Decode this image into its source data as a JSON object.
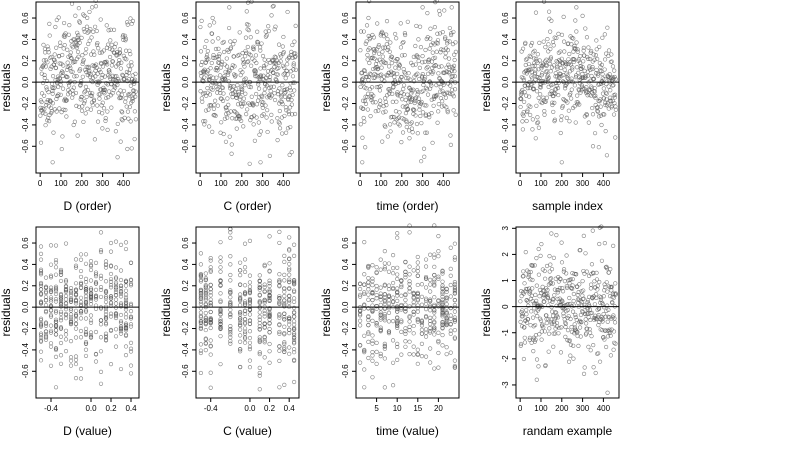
{
  "chart_data": [
    {
      "id": "p1",
      "type": "scatter",
      "xlabel": "D (order)",
      "ylabel": "residuals",
      "xlim": [
        -20,
        475
      ],
      "ylim": [
        -0.85,
        0.75
      ],
      "xticks": [
        0,
        100,
        200,
        300,
        400
      ],
      "xtick_labels": [
        "0",
        "100",
        "200",
        "300",
        "400"
      ],
      "yticks": [
        -0.6,
        -0.4,
        -0.2,
        0.0,
        0.2,
        0.4,
        0.6
      ],
      "ytick_labels": [
        "-0.6",
        "-0.4",
        "-0.2",
        "0.0",
        "0.2",
        "0.4",
        "0.6"
      ],
      "hline": 0,
      "x_kind": "index",
      "n_points": 460,
      "trend": "arch",
      "y_sd": 0.24,
      "seed": 11,
      "y_extremes": [
        [
          250,
          0.7
        ],
        [
          60,
          -0.75
        ],
        [
          440,
          -0.62
        ],
        [
          180,
          -0.5
        ]
      ]
    },
    {
      "id": "p2",
      "type": "scatter",
      "xlabel": "C (order)",
      "ylabel": "residuals",
      "xlim": [
        -20,
        475
      ],
      "ylim": [
        -0.85,
        0.75
      ],
      "xticks": [
        0,
        100,
        200,
        300,
        400
      ],
      "xtick_labels": [
        "0",
        "100",
        "200",
        "300",
        "400"
      ],
      "yticks": [
        -0.6,
        -0.4,
        -0.2,
        0.0,
        0.2,
        0.4,
        0.6
      ],
      "ytick_labels": [
        "-0.6",
        "-0.4",
        "-0.2",
        "0.0",
        "0.2",
        "0.4",
        "0.6"
      ],
      "hline": 0,
      "x_kind": "index",
      "n_points": 460,
      "trend": "flat",
      "y_sd": 0.26,
      "seed": 23,
      "y_extremes": [
        [
          140,
          0.7
        ],
        [
          290,
          -0.75
        ],
        [
          430,
          -0.68
        ],
        [
          60,
          0.6
        ]
      ]
    },
    {
      "id": "p3",
      "type": "scatter",
      "xlabel": "time (order)",
      "ylabel": "residuals",
      "xlim": [
        -20,
        475
      ],
      "ylim": [
        -0.85,
        0.75
      ],
      "xticks": [
        0,
        100,
        200,
        300,
        400
      ],
      "xtick_labels": [
        "0",
        "100",
        "200",
        "300",
        "400"
      ],
      "yticks": [
        -0.6,
        -0.4,
        -0.2,
        0.0,
        0.2,
        0.4,
        0.6
      ],
      "ytick_labels": [
        "-0.6",
        "-0.4",
        "-0.2",
        "0.0",
        "0.2",
        "0.4",
        "0.6"
      ],
      "hline": 0,
      "x_kind": "index",
      "n_points": 460,
      "trend": "wave",
      "y_sd": 0.26,
      "seed": 37,
      "y_extremes": [
        [
          10,
          -0.75
        ],
        [
          300,
          0.7
        ],
        [
          40,
          0.6
        ],
        [
          440,
          0.7
        ]
      ]
    },
    {
      "id": "p4",
      "type": "scatter",
      "xlabel": "sample index",
      "ylabel": "residuals",
      "xlim": [
        -20,
        475
      ],
      "ylim": [
        -0.85,
        0.75
      ],
      "xticks": [
        0,
        100,
        200,
        300,
        400
      ],
      "xtick_labels": [
        "0",
        "100",
        "200",
        "300",
        "400"
      ],
      "yticks": [
        -0.6,
        -0.4,
        -0.2,
        0.0,
        0.2,
        0.4,
        0.6
      ],
      "ytick_labels": [
        "-0.6",
        "-0.4",
        "-0.2",
        "0.0",
        "0.2",
        "0.4",
        "0.6"
      ],
      "hline": 0,
      "x_kind": "index",
      "n_points": 460,
      "trend": "ramp",
      "y_sd": 0.22,
      "seed": 41,
      "y_extremes": [
        [
          270,
          0.7
        ],
        [
          200,
          -0.75
        ],
        [
          350,
          -0.6
        ],
        [
          300,
          0.62
        ]
      ]
    },
    {
      "id": "p5",
      "type": "scatter",
      "xlabel": "D (value)",
      "ylabel": "residuals",
      "xlim": [
        -0.55,
        0.48
      ],
      "ylim": [
        -0.85,
        0.75
      ],
      "xticks": [
        -0.4,
        0.0,
        0.2,
        0.4
      ],
      "xtick_labels": [
        "-0.4",
        "0.0",
        "0.2",
        "0.4"
      ],
      "yticks": [
        -0.6,
        -0.4,
        -0.2,
        0.0,
        0.2,
        0.4,
        0.6
      ],
      "ytick_labels": [
        "-0.6",
        "-0.4",
        "-0.2",
        "0.0",
        "0.2",
        "0.4",
        "0.6"
      ],
      "hline": 0,
      "x_kind": "levels",
      "x_levels": [
        -0.5,
        -0.45,
        -0.4,
        -0.35,
        -0.3,
        -0.25,
        -0.2,
        -0.15,
        -0.1,
        -0.05,
        0.0,
        0.05,
        0.1,
        0.15,
        0.2,
        0.25,
        0.3,
        0.35,
        0.4
      ],
      "n_points": 460,
      "trend": "flat",
      "y_sd": 0.25,
      "seed": 53,
      "y_extremes": [
        [
          0.1,
          0.7
        ],
        [
          -0.35,
          -0.75
        ],
        [
          0.4,
          -0.62
        ],
        [
          0.2,
          0.6
        ]
      ]
    },
    {
      "id": "p6",
      "type": "scatter",
      "xlabel": "C (value)",
      "ylabel": "residuals",
      "xlim": [
        -0.55,
        0.5
      ],
      "ylim": [
        -0.85,
        0.75
      ],
      "xticks": [
        -0.4,
        0.0,
        0.2,
        0.4
      ],
      "xtick_labels": [
        "-0.4",
        "0.0",
        "0.2",
        "0.4"
      ],
      "yticks": [
        -0.6,
        -0.4,
        -0.2,
        0.0,
        0.2,
        0.4,
        0.6
      ],
      "ytick_labels": [
        "-0.6",
        "-0.4",
        "-0.2",
        "0.0",
        "0.2",
        "0.4",
        "0.6"
      ],
      "hline": 0,
      "x_kind": "levels",
      "x_levels": [
        -0.5,
        -0.45,
        -0.4,
        -0.3,
        -0.2,
        -0.1,
        -0.05,
        0.0,
        0.1,
        0.15,
        0.2,
        0.3,
        0.35,
        0.4,
        0.45
      ],
      "n_points": 460,
      "trend": "flat",
      "y_sd": 0.26,
      "seed": 67,
      "y_extremes": [
        [
          -0.2,
          0.7
        ],
        [
          0.3,
          -0.75
        ],
        [
          0.45,
          -0.7
        ],
        [
          0.0,
          0.62
        ]
      ]
    },
    {
      "id": "p7",
      "type": "scatter",
      "xlabel": "time (value)",
      "ylabel": "residuals",
      "xlim": [
        0,
        25
      ],
      "ylim": [
        -0.85,
        0.75
      ],
      "xticks": [
        5,
        10,
        15,
        20
      ],
      "xtick_labels": [
        "5",
        "10",
        "15",
        "20"
      ],
      "yticks": [
        -0.6,
        -0.4,
        -0.2,
        0.0,
        0.2,
        0.4,
        0.6
      ],
      "ytick_labels": [
        "-0.6",
        "-0.4",
        "-0.2",
        "0.0",
        "0.2",
        "0.4",
        "0.6"
      ],
      "hline": 0,
      "x_kind": "levels",
      "x_levels": [
        1,
        2,
        3,
        4,
        5,
        6,
        7,
        8,
        9,
        10,
        11,
        12,
        13,
        14,
        15,
        16,
        17,
        18,
        19,
        20,
        21,
        22,
        23,
        24
      ],
      "n_points": 460,
      "trend": "flat",
      "y_sd": 0.26,
      "seed": 79,
      "y_extremes": [
        [
          2,
          -0.75
        ],
        [
          13,
          0.7
        ],
        [
          24,
          -0.55
        ],
        [
          10,
          0.65
        ]
      ]
    },
    {
      "id": "p8",
      "type": "scatter",
      "xlabel": "randam example",
      "ylabel": "residuals",
      "xlim": [
        -20,
        475
      ],
      "ylim": [
        -3.5,
        3.05
      ],
      "xticks": [
        0,
        100,
        200,
        300,
        400
      ],
      "xtick_labels": [
        "0",
        "100",
        "200",
        "300",
        "400"
      ],
      "yticks": [
        -3,
        -2,
        -1,
        0,
        1,
        2,
        3
      ],
      "ytick_labels": [
        "-3",
        "-2",
        "-1",
        "0",
        "1",
        "2",
        "3"
      ],
      "hline": 0,
      "x_kind": "index",
      "n_points": 460,
      "trend": "flat",
      "y_sd": 1.0,
      "seed": 97,
      "y_extremes": [
        [
          150,
          2.8
        ],
        [
          420,
          -3.3
        ],
        [
          80,
          -2.8
        ],
        [
          380,
          2.4
        ]
      ]
    }
  ]
}
